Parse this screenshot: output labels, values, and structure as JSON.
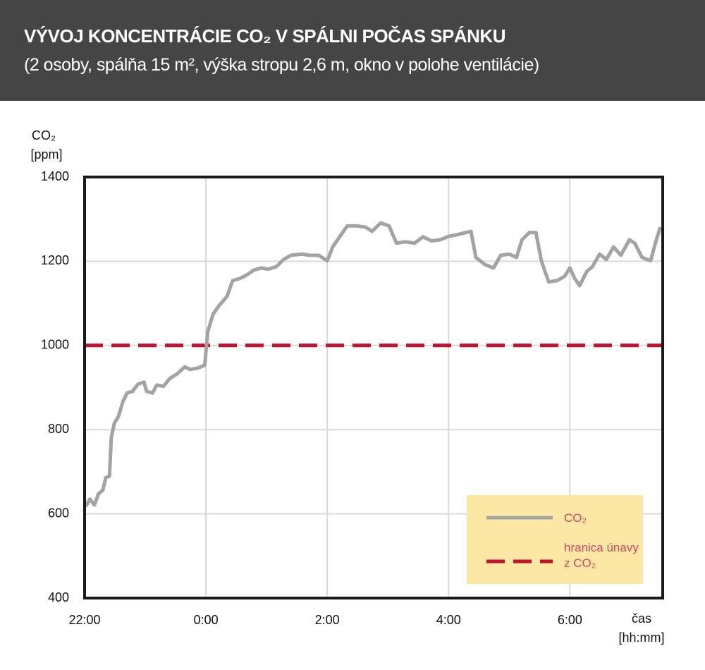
{
  "chart_data": {
    "type": "line",
    "title": "VÝVOJ KONCENTRÁCIE CO₂ V SPÁLNI POČAS SPÁNKU",
    "subtitle": "(2 osoby, spálňa 15 m², výška stropu 2,6 m, okno v polohe ventilácie)",
    "ylabel": [
      "CO₂",
      "[ppm]"
    ],
    "xlabel": [
      "čas",
      "[hh:mm]"
    ],
    "x": [
      22.02,
      22.09,
      22.16,
      22.23,
      22.3,
      22.35,
      22.41,
      22.44,
      22.49,
      22.56,
      22.63,
      22.7,
      22.79,
      22.88,
      22.98,
      23.02,
      23.12,
      23.19,
      23.3,
      23.4,
      23.53,
      23.65,
      23.74,
      23.86,
      23.98,
      24.03,
      24.12,
      24.23,
      24.35,
      24.44,
      24.56,
      24.67,
      24.79,
      24.91,
      25.02,
      25.16,
      25.28,
      25.4,
      25.58,
      25.72,
      25.86,
      26.0,
      26.09,
      26.21,
      26.33,
      26.48,
      26.63,
      26.74,
      26.88,
      27.02,
      27.14,
      27.29,
      27.44,
      27.58,
      27.72,
      27.86,
      28.0,
      28.14,
      28.28,
      28.37,
      28.45,
      28.6,
      28.74,
      28.86,
      29.0,
      29.12,
      29.21,
      29.33,
      29.44,
      29.53,
      29.65,
      29.79,
      29.91,
      30.0,
      30.08,
      30.16,
      30.28,
      30.37,
      30.49,
      30.6,
      30.72,
      30.84,
      30.98,
      31.07,
      31.19,
      31.33,
      31.42,
      31.49
    ],
    "series": [
      {
        "name": "CO₂",
        "color": "#a3a3a3",
        "values": [
          618,
          635,
          621,
          648,
          656,
          686,
          690,
          782,
          815,
          832,
          866,
          887,
          891,
          908,
          913,
          891,
          887,
          906,
          903,
          921,
          933,
          949,
          943,
          946,
          953,
          1033,
          1075,
          1097,
          1117,
          1154,
          1159,
          1167,
          1179,
          1184,
          1181,
          1187,
          1204,
          1214,
          1217,
          1214,
          1214,
          1201,
          1234,
          1259,
          1284,
          1284,
          1281,
          1271,
          1291,
          1284,
          1243,
          1246,
          1243,
          1258,
          1248,
          1251,
          1259,
          1263,
          1268,
          1271,
          1209,
          1192,
          1184,
          1214,
          1217,
          1209,
          1251,
          1268,
          1268,
          1201,
          1151,
          1154,
          1164,
          1184,
          1159,
          1142,
          1176,
          1187,
          1217,
          1204,
          1234,
          1214,
          1251,
          1243,
          1209,
          1201,
          1248,
          1281
        ]
      }
    ],
    "threshold": {
      "name": "hranica únavy z CO₂",
      "value": 1000,
      "color": "#c8102e"
    },
    "xlim": [
      22,
      31.53
    ],
    "xticks": [
      {
        "value": 22,
        "label": "22:00"
      },
      {
        "value": 24,
        "label": "0:00"
      },
      {
        "value": 26,
        "label": "2:00"
      },
      {
        "value": 28,
        "label": "4:00"
      },
      {
        "value": 30,
        "label": "6:00"
      }
    ],
    "ylim": [
      400,
      1400
    ],
    "yticks": [
      400,
      600,
      800,
      1000,
      1200,
      1400
    ],
    "grid": true,
    "legend_position": "lower right"
  }
}
